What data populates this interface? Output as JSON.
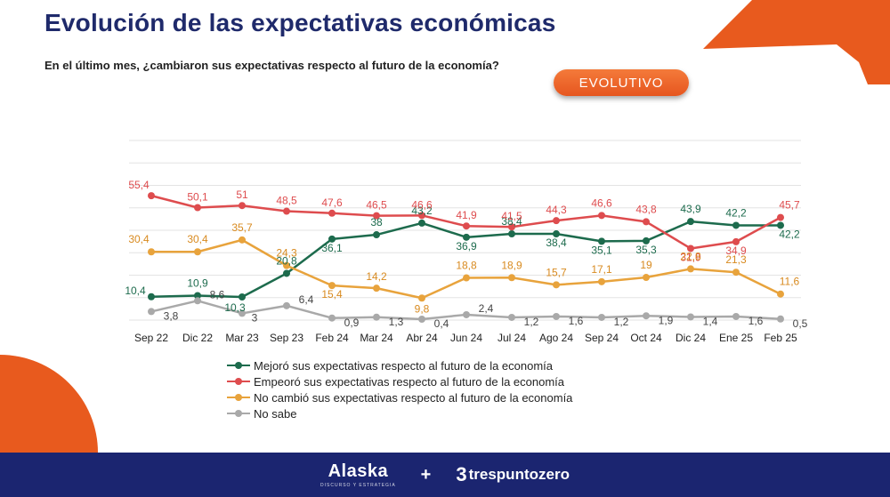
{
  "title": "Evolución de las expectativas económicas",
  "subtitle": "En el último mes, ¿cambiaron sus expectativas respecto al futuro de la economía?",
  "badge": "EVOLUTIVO",
  "footer": {
    "brand1": "Alaska",
    "brand1_tagline": "DISCURSO Y ESTRATEGIA",
    "plus": "+",
    "brand2_mark": "3",
    "brand2": "trespuntozero"
  },
  "colors": {
    "title": "#1f2a6b",
    "accent": "#e85a1e",
    "footer": "#1b2570"
  },
  "chart_data": {
    "type": "line",
    "categories": [
      "Sep 22",
      "Dic 22",
      "Mar 23",
      "Sep 23",
      "Feb 24",
      "Mar 24",
      "Abr 24",
      "Jun 24",
      "Jul 24",
      "Ago 24",
      "Sep 24",
      "Oct 24",
      "Dic 24",
      "Ene 25",
      "Feb 25"
    ],
    "ylim": [
      0,
      80
    ],
    "grid": true,
    "legend_position": "bottom",
    "series": [
      {
        "name": "Mejoró sus expectativas respecto al futuro de la economía",
        "color": "#1d6b4d",
        "values": [
          10.4,
          10.9,
          10.3,
          20.8,
          36.1,
          38,
          43.2,
          36.9,
          38.4,
          38.4,
          35.1,
          35.3,
          43.9,
          42.2,
          42.2
        ]
      },
      {
        "name": "Empeoró sus expectativas respecto al futuro de la economía",
        "color": "#de4c4e",
        "values": [
          55.4,
          50.1,
          51,
          48.5,
          47.6,
          46.5,
          46.6,
          41.9,
          41.5,
          44.3,
          46.6,
          43.8,
          31.9,
          34.9,
          45.7
        ]
      },
      {
        "name": "No cambió sus expectativas respecto al futuro de la economía",
        "color": "#e8a33c",
        "values": [
          30.4,
          30.4,
          35.7,
          24.3,
          15.4,
          14.2,
          9.8,
          18.8,
          18.9,
          15.7,
          17.1,
          19,
          22.8,
          21.3,
          11.6
        ]
      },
      {
        "name": "No sabe",
        "color": "#a9a9a9",
        "values": [
          3.8,
          8.6,
          3,
          6.4,
          0.9,
          1.3,
          0.4,
          2.4,
          1.2,
          1.6,
          1.2,
          1.9,
          1.4,
          1.6,
          0.5
        ]
      }
    ]
  }
}
